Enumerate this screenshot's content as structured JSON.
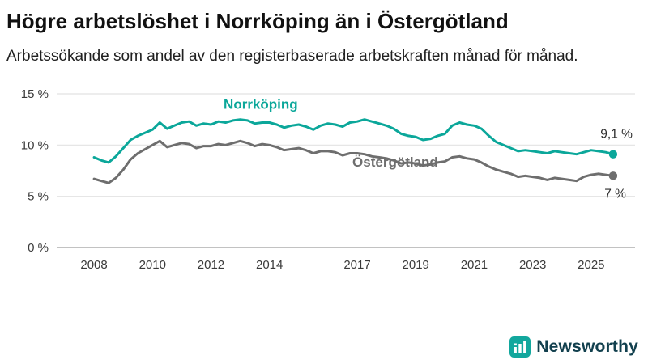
{
  "colors": {
    "norrkoping": "#0ba79a",
    "ostergotland": "#6e6e6e",
    "grid": "#e2e2e2",
    "axis_zero": "#9e9e9e",
    "tick_text": "#3a3a3a",
    "title_text": "#111111",
    "brand_teal": "#12a79d",
    "brand_dark": "#12404e"
  },
  "footer": {
    "brand": "Newsworthy"
  },
  "chart_data": {
    "type": "line",
    "title": "Högre arbetslöshet i Norrköping än i Östergötland",
    "subtitle": "Arbetssökande som andel av den registerbaserade arbetskraften månad för månad.",
    "xlabel": "",
    "ylabel": "",
    "grid": "horizontal",
    "legend_position": "inline-labels",
    "xlim": [
      2007.5,
      2026.5
    ],
    "ylim": [
      0,
      15
    ],
    "y_ticks": [
      {
        "value": 15,
        "label": "15 %"
      },
      {
        "value": 10,
        "label": "10 %"
      },
      {
        "value": 5,
        "label": "5 %"
      },
      {
        "value": 0,
        "label": "0 %"
      }
    ],
    "x_ticks": [
      {
        "value": 2008,
        "label": "2008"
      },
      {
        "value": 2010,
        "label": "2010"
      },
      {
        "value": 2012,
        "label": "2012"
      },
      {
        "value": 2014,
        "label": "2014"
      },
      {
        "value": 2017,
        "label": "2017"
      },
      {
        "value": 2019,
        "label": "2019"
      },
      {
        "value": 2021,
        "label": "2021"
      },
      {
        "value": 2023,
        "label": "2023"
      },
      {
        "value": 2025,
        "label": "2025"
      }
    ],
    "series": [
      {
        "id": "ostergotland",
        "name": "Östergötland",
        "color_key": "ostergotland",
        "end_label": "7 %",
        "label_pos": {
          "x": 2018.3,
          "y": 7.9
        },
        "points": [
          [
            2008.0,
            6.7
          ],
          [
            2008.25,
            6.5
          ],
          [
            2008.5,
            6.3
          ],
          [
            2008.75,
            6.8
          ],
          [
            2009.0,
            7.6
          ],
          [
            2009.25,
            8.6
          ],
          [
            2009.5,
            9.2
          ],
          [
            2009.75,
            9.6
          ],
          [
            2010.0,
            10.0
          ],
          [
            2010.25,
            10.4
          ],
          [
            2010.5,
            9.8
          ],
          [
            2010.75,
            10.0
          ],
          [
            2011.0,
            10.2
          ],
          [
            2011.25,
            10.1
          ],
          [
            2011.5,
            9.7
          ],
          [
            2011.75,
            9.9
          ],
          [
            2012.0,
            9.9
          ],
          [
            2012.25,
            10.1
          ],
          [
            2012.5,
            10.0
          ],
          [
            2012.75,
            10.2
          ],
          [
            2013.0,
            10.4
          ],
          [
            2013.25,
            10.2
          ],
          [
            2013.5,
            9.9
          ],
          [
            2013.75,
            10.1
          ],
          [
            2014.0,
            10.0
          ],
          [
            2014.25,
            9.8
          ],
          [
            2014.5,
            9.5
          ],
          [
            2014.75,
            9.6
          ],
          [
            2015.0,
            9.7
          ],
          [
            2015.25,
            9.5
          ],
          [
            2015.5,
            9.2
          ],
          [
            2015.75,
            9.4
          ],
          [
            2016.0,
            9.4
          ],
          [
            2016.25,
            9.3
          ],
          [
            2016.5,
            9.0
          ],
          [
            2016.75,
            9.2
          ],
          [
            2017.0,
            9.2
          ],
          [
            2017.25,
            9.1
          ],
          [
            2017.5,
            8.9
          ],
          [
            2017.75,
            8.8
          ],
          [
            2018.0,
            8.7
          ],
          [
            2018.25,
            8.5
          ],
          [
            2018.5,
            8.2
          ],
          [
            2018.75,
            8.3
          ],
          [
            2019.0,
            8.2
          ],
          [
            2019.25,
            8.0
          ],
          [
            2019.5,
            8.1
          ],
          [
            2019.75,
            8.3
          ],
          [
            2020.0,
            8.4
          ],
          [
            2020.25,
            8.8
          ],
          [
            2020.5,
            8.9
          ],
          [
            2020.75,
            8.7
          ],
          [
            2021.0,
            8.6
          ],
          [
            2021.25,
            8.3
          ],
          [
            2021.5,
            7.9
          ],
          [
            2021.75,
            7.6
          ],
          [
            2022.0,
            7.4
          ],
          [
            2022.25,
            7.2
          ],
          [
            2022.5,
            6.9
          ],
          [
            2022.75,
            7.0
          ],
          [
            2023.0,
            6.9
          ],
          [
            2023.25,
            6.8
          ],
          [
            2023.5,
            6.6
          ],
          [
            2023.75,
            6.8
          ],
          [
            2024.0,
            6.7
          ],
          [
            2024.25,
            6.6
          ],
          [
            2024.5,
            6.5
          ],
          [
            2024.75,
            6.9
          ],
          [
            2025.0,
            7.1
          ],
          [
            2025.25,
            7.2
          ],
          [
            2025.5,
            7.1
          ],
          [
            2025.75,
            7.0
          ]
        ]
      },
      {
        "id": "norrkoping",
        "name": "Norrköping",
        "color_key": "norrkoping",
        "end_label": "9,1 %",
        "label_pos": {
          "x": 2013.7,
          "y": 13.55
        },
        "points": [
          [
            2008.0,
            8.8
          ],
          [
            2008.25,
            8.5
          ],
          [
            2008.5,
            8.3
          ],
          [
            2008.75,
            8.9
          ],
          [
            2009.0,
            9.7
          ],
          [
            2009.25,
            10.5
          ],
          [
            2009.5,
            10.9
          ],
          [
            2009.75,
            11.2
          ],
          [
            2010.0,
            11.5
          ],
          [
            2010.25,
            12.2
          ],
          [
            2010.5,
            11.6
          ],
          [
            2010.75,
            11.9
          ],
          [
            2011.0,
            12.2
          ],
          [
            2011.25,
            12.3
          ],
          [
            2011.5,
            11.9
          ],
          [
            2011.75,
            12.1
          ],
          [
            2012.0,
            12.0
          ],
          [
            2012.25,
            12.3
          ],
          [
            2012.5,
            12.2
          ],
          [
            2012.75,
            12.4
          ],
          [
            2013.0,
            12.5
          ],
          [
            2013.25,
            12.4
          ],
          [
            2013.5,
            12.1
          ],
          [
            2013.75,
            12.2
          ],
          [
            2014.0,
            12.2
          ],
          [
            2014.25,
            12.0
          ],
          [
            2014.5,
            11.7
          ],
          [
            2014.75,
            11.9
          ],
          [
            2015.0,
            12.0
          ],
          [
            2015.25,
            11.8
          ],
          [
            2015.5,
            11.5
          ],
          [
            2015.75,
            11.9
          ],
          [
            2016.0,
            12.1
          ],
          [
            2016.25,
            12.0
          ],
          [
            2016.5,
            11.8
          ],
          [
            2016.75,
            12.2
          ],
          [
            2017.0,
            12.3
          ],
          [
            2017.25,
            12.5
          ],
          [
            2017.5,
            12.3
          ],
          [
            2017.75,
            12.1
          ],
          [
            2018.0,
            11.9
          ],
          [
            2018.25,
            11.6
          ],
          [
            2018.5,
            11.1
          ],
          [
            2018.75,
            10.9
          ],
          [
            2019.0,
            10.8
          ],
          [
            2019.25,
            10.5
          ],
          [
            2019.5,
            10.6
          ],
          [
            2019.75,
            10.9
          ],
          [
            2020.0,
            11.1
          ],
          [
            2020.25,
            11.9
          ],
          [
            2020.5,
            12.2
          ],
          [
            2020.75,
            12.0
          ],
          [
            2021.0,
            11.9
          ],
          [
            2021.25,
            11.6
          ],
          [
            2021.5,
            10.9
          ],
          [
            2021.75,
            10.3
          ],
          [
            2022.0,
            10.0
          ],
          [
            2022.25,
            9.7
          ],
          [
            2022.5,
            9.4
          ],
          [
            2022.75,
            9.5
          ],
          [
            2023.0,
            9.4
          ],
          [
            2023.25,
            9.3
          ],
          [
            2023.5,
            9.2
          ],
          [
            2023.75,
            9.4
          ],
          [
            2024.0,
            9.3
          ],
          [
            2024.25,
            9.2
          ],
          [
            2024.5,
            9.1
          ],
          [
            2024.75,
            9.3
          ],
          [
            2025.0,
            9.5
          ],
          [
            2025.25,
            9.4
          ],
          [
            2025.5,
            9.3
          ],
          [
            2025.75,
            9.1
          ]
        ]
      }
    ]
  }
}
